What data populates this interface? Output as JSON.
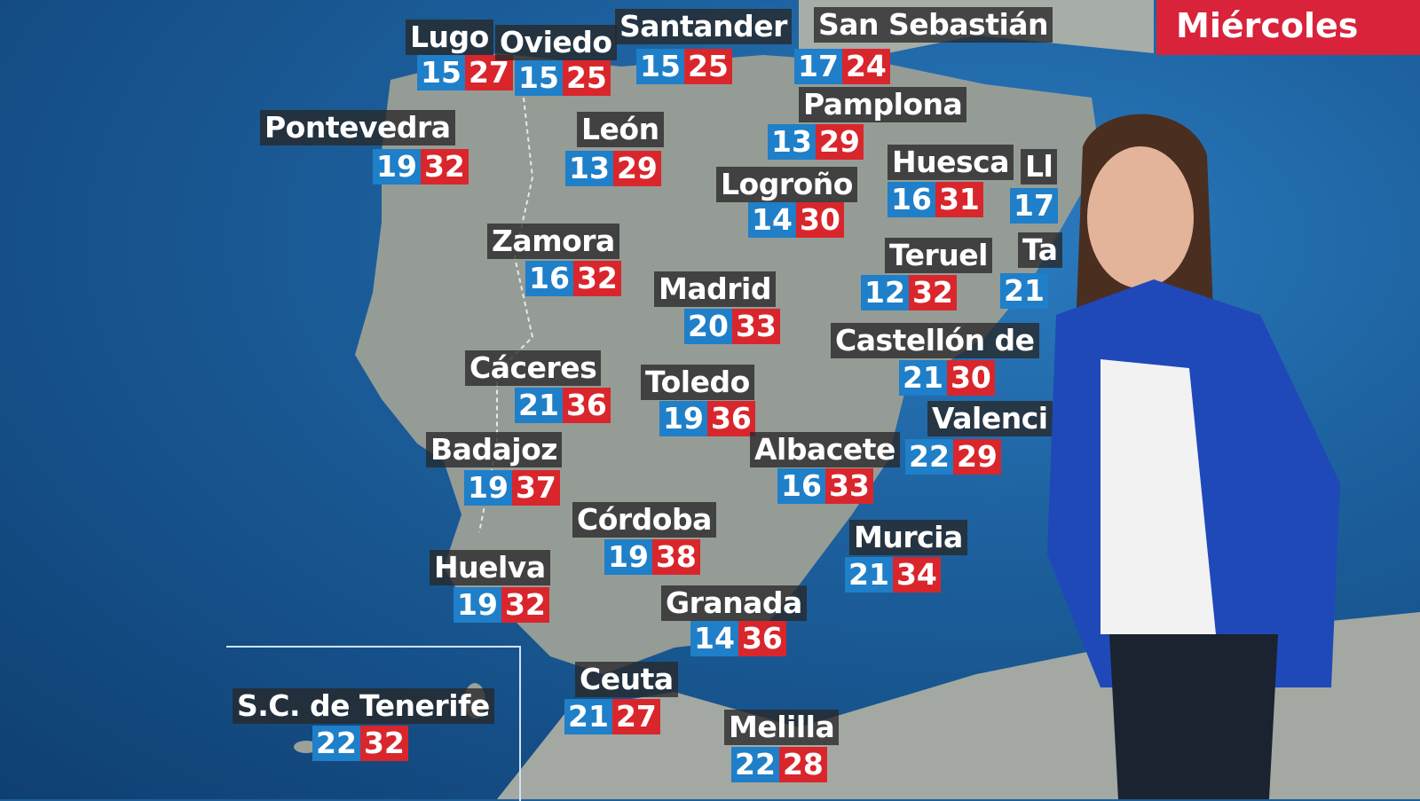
{
  "day_label": "Miércoles",
  "colors": {
    "min_temp": "#1f7fc8",
    "max_temp": "#d9262c",
    "day_banner": "#d8233a",
    "sea": "#1c5f9c",
    "land": "#9aa19a"
  },
  "cities": [
    {
      "name": "Lugo",
      "min": "15",
      "max": "27"
    },
    {
      "name": "Oviedo",
      "min": "15",
      "max": "25"
    },
    {
      "name": "Santander",
      "min": "15",
      "max": "25"
    },
    {
      "name": "San Sebastián",
      "min": "17",
      "max": "24"
    },
    {
      "name": "Pontevedra",
      "min": "19",
      "max": "32"
    },
    {
      "name": "León",
      "min": "13",
      "max": "29"
    },
    {
      "name": "Pamplona",
      "min": "13",
      "max": "29"
    },
    {
      "name": "Logroño",
      "min": "14",
      "max": "30"
    },
    {
      "name": "Huesca",
      "min": "16",
      "max": "31"
    },
    {
      "name": "Ll",
      "min": "17",
      "max": null
    },
    {
      "name": "Zamora",
      "min": "16",
      "max": "32"
    },
    {
      "name": "Madrid",
      "min": "20",
      "max": "33"
    },
    {
      "name": "Teruel",
      "min": "12",
      "max": "32"
    },
    {
      "name": "Ta",
      "min": "21",
      "max": null
    },
    {
      "name": "Cáceres",
      "min": "21",
      "max": "36"
    },
    {
      "name": "Toledo",
      "min": "19",
      "max": "36"
    },
    {
      "name": "Castellón de",
      "min": "21",
      "max": "30"
    },
    {
      "name": "Valenci",
      "min": "22",
      "max": "29"
    },
    {
      "name": "Badajoz",
      "min": "19",
      "max": "37"
    },
    {
      "name": "Albacete",
      "min": "16",
      "max": "33"
    },
    {
      "name": "Córdoba",
      "min": "19",
      "max": "38"
    },
    {
      "name": "Murcia",
      "min": "21",
      "max": "34"
    },
    {
      "name": "Huelva",
      "min": "19",
      "max": "32"
    },
    {
      "name": "Granada",
      "min": "14",
      "max": "36"
    },
    {
      "name": "Ceuta",
      "min": "21",
      "max": "27"
    },
    {
      "name": "Melilla",
      "min": "22",
      "max": "28"
    },
    {
      "name": "S.C. de Tenerife",
      "min": "22",
      "max": "32"
    }
  ]
}
